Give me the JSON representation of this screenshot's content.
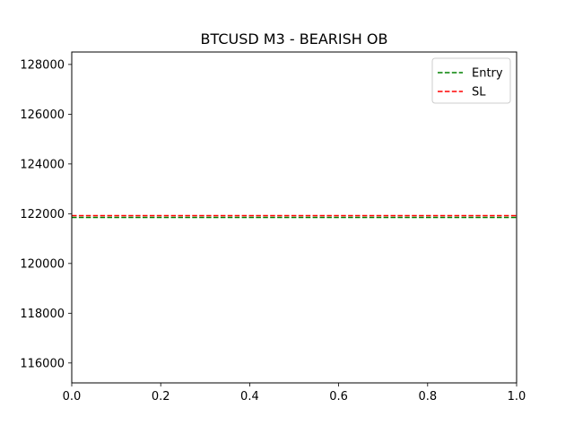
{
  "chart_data": {
    "type": "line",
    "title": "BTCUSD M3 - BEARISH OB",
    "xlabel": "",
    "ylabel": "",
    "xlim": [
      0.0,
      1.0
    ],
    "ylim": [
      115200,
      128500
    ],
    "x_ticks": [
      {
        "value": 0.0,
        "label": "0.0"
      },
      {
        "value": 0.2,
        "label": "0.2"
      },
      {
        "value": 0.4,
        "label": "0.4"
      },
      {
        "value": 0.6,
        "label": "0.6"
      },
      {
        "value": 0.8,
        "label": "0.8"
      },
      {
        "value": 1.0,
        "label": "1.0"
      }
    ],
    "y_ticks": [
      {
        "value": 116000,
        "label": "116000"
      },
      {
        "value": 118000,
        "label": "118000"
      },
      {
        "value": 120000,
        "label": "120000"
      },
      {
        "value": 122000,
        "label": "122000"
      },
      {
        "value": 124000,
        "label": "124000"
      },
      {
        "value": 126000,
        "label": "126000"
      },
      {
        "value": 128000,
        "label": "128000"
      }
    ],
    "grid": false,
    "legend_position": "top-right",
    "series": [
      {
        "name": "Entry",
        "kind": "horizontal-line",
        "y": 121850,
        "color": "#008000",
        "linestyle": "dashed"
      },
      {
        "name": "SL",
        "kind": "horizontal-line",
        "y": 121920,
        "color": "#ff0000",
        "linestyle": "dashed"
      }
    ]
  }
}
